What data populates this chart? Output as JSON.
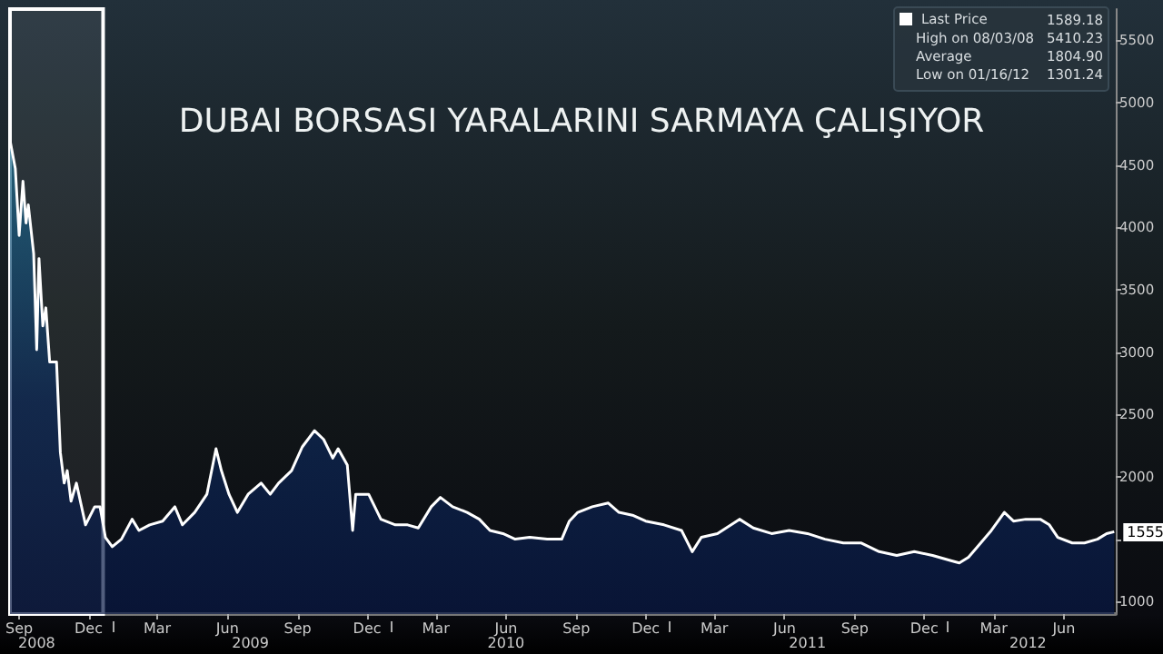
{
  "chart_data": {
    "type": "area",
    "title": "DUBAI BORSASI YARALARINI SARMAYA ÇALIŞIYOR",
    "series": [
      {
        "name": "Last Price",
        "color": "#ffffff",
        "x": [
          "2008-08-20",
          "2008-08-27",
          "2008-09-01",
          "2008-09-06",
          "2008-09-10",
          "2008-09-13",
          "2008-09-20",
          "2008-09-24",
          "2008-09-27",
          "2008-10-02",
          "2008-10-06",
          "2008-10-11",
          "2008-10-20",
          "2008-10-25",
          "2008-10-30",
          "2008-11-03",
          "2008-11-08",
          "2008-11-15",
          "2008-11-27",
          "2008-12-09",
          "2008-12-16",
          "2008-12-23",
          "2009-01-01",
          "2009-01-13",
          "2009-01-27",
          "2009-02-05",
          "2009-02-19",
          "2009-03-08",
          "2009-03-24",
          "2009-04-03",
          "2009-04-19",
          "2009-05-05",
          "2009-05-17",
          "2009-05-24",
          "2009-06-03",
          "2009-06-14",
          "2009-06-28",
          "2009-07-15",
          "2009-07-27",
          "2009-08-07",
          "2009-08-24",
          "2009-09-07",
          "2009-09-23",
          "2009-10-05",
          "2009-10-17",
          "2009-10-24",
          "2009-11-05",
          "2009-11-12",
          "2009-11-16",
          "2009-12-03",
          "2009-12-19",
          "2010-01-07",
          "2010-01-23",
          "2010-02-06",
          "2010-02-23",
          "2010-03-07",
          "2010-03-23",
          "2010-04-11",
          "2010-04-27",
          "2010-05-11",
          "2010-05-28",
          "2010-06-13",
          "2010-07-02",
          "2010-07-25",
          "2010-08-13",
          "2010-08-23",
          "2010-09-03",
          "2010-09-22",
          "2010-10-13",
          "2010-10-27",
          "2010-11-15",
          "2010-12-01",
          "2010-12-25",
          "2011-01-17",
          "2011-01-31",
          "2011-02-12",
          "2011-03-05",
          "2011-04-03",
          "2011-04-21",
          "2011-05-15",
          "2011-06-07",
          "2011-07-01",
          "2011-07-24",
          "2011-08-17",
          "2011-09-09",
          "2011-10-03",
          "2011-10-26",
          "2011-11-18",
          "2011-12-12",
          "2012-01-04",
          "2012-01-16",
          "2012-01-28",
          "2012-02-09",
          "2012-02-27",
          "2012-03-15",
          "2012-03-27",
          "2012-04-12",
          "2012-05-01",
          "2012-05-13",
          "2012-05-24",
          "2012-06-12",
          "2012-06-28",
          "2012-07-15",
          "2012-07-27",
          "2012-08-06"
        ],
        "values": [
          4700,
          4470,
          3935,
          4370,
          4035,
          4180,
          3790,
          3020,
          3750,
          3210,
          3355,
          2920,
          2920,
          2195,
          1950,
          2050,
          1805,
          1950,
          1615,
          1760,
          1760,
          1515,
          1440,
          1500,
          1660,
          1570,
          1615,
          1645,
          1760,
          1615,
          1715,
          1860,
          2225,
          2050,
          1860,
          1715,
          1860,
          1950,
          1860,
          1950,
          2050,
          2240,
          2370,
          2300,
          2150,
          2225,
          2095,
          1570,
          1860,
          1860,
          1660,
          1615,
          1615,
          1590,
          1760,
          1835,
          1760,
          1715,
          1660,
          1570,
          1545,
          1500,
          1515,
          1500,
          1500,
          1645,
          1715,
          1760,
          1790,
          1715,
          1690,
          1645,
          1615,
          1570,
          1400,
          1515,
          1545,
          1660,
          1590,
          1545,
          1570,
          1545,
          1500,
          1470,
          1470,
          1400,
          1370,
          1400,
          1370,
          1330,
          1310,
          1355,
          1440,
          1570,
          1715,
          1645,
          1660,
          1660,
          1615,
          1515,
          1470,
          1470,
          1500,
          1545,
          1560
        ]
      }
    ],
    "xlim": [
      "2008-08-20",
      "2012-08-08"
    ],
    "xticks": [
      {
        "value": "2008-09-01",
        "label": "Sep"
      },
      {
        "value": "2008-12-01",
        "label": "Dec"
      },
      {
        "value": "2009-03-01",
        "label": "Mar"
      },
      {
        "value": "2009-06-01",
        "label": "Jun"
      },
      {
        "value": "2009-09-01",
        "label": "Sep"
      },
      {
        "value": "2009-12-01",
        "label": "Dec"
      },
      {
        "value": "2010-03-01",
        "label": "Mar"
      },
      {
        "value": "2010-06-01",
        "label": "Jun"
      },
      {
        "value": "2010-09-01",
        "label": "Sep"
      },
      {
        "value": "2010-12-01",
        "label": "Dec"
      },
      {
        "value": "2011-03-01",
        "label": "Mar"
      },
      {
        "value": "2011-06-01",
        "label": "Jun"
      },
      {
        "value": "2011-09-01",
        "label": "Sep"
      },
      {
        "value": "2011-12-01",
        "label": "Dec"
      },
      {
        "value": "2012-03-01",
        "label": "Mar"
      },
      {
        "value": "2012-06-01",
        "label": "Jun"
      }
    ],
    "x2lim": [
      "2008-08-20",
      "2012-08-08"
    ],
    "x2ticks": [
      {
        "value": "2008-09-24",
        "label": "2008"
      },
      {
        "value": "2009-01-01",
        "label": null
      },
      {
        "value": "2009-07-01",
        "label": "2009"
      },
      {
        "value": "2010-01-01",
        "label": null
      },
      {
        "value": "2010-06-01",
        "label": "2010"
      },
      {
        "value": "2011-01-01",
        "label": null
      },
      {
        "value": "2011-07-01",
        "label": "2011"
      },
      {
        "value": "2012-01-01",
        "label": null
      },
      {
        "value": "2012-04-15",
        "label": "2012"
      }
    ],
    "ylim": [
      900,
      5750
    ],
    "yticks": [
      1000,
      {
        "value": 1500,
        "label": null
      },
      2000,
      2500,
      3000,
      3500,
      4000,
      4500,
      5000,
      5500
    ],
    "bands": [
      {
        "axis": "x",
        "from": "2008-08-20",
        "to": "2008-12-20",
        "color": "#ffffff"
      }
    ],
    "annotations": [
      "1589.18",
      "High on 08/03/08",
      "5410.23",
      "Average",
      "1804.90",
      "Low on 01/16/12",
      "1301.24",
      {
        "text": "1555",
        "x": "2012-08-06",
        "y": 1555
      }
    ],
    "legend": "top right",
    "grid": false
  }
}
